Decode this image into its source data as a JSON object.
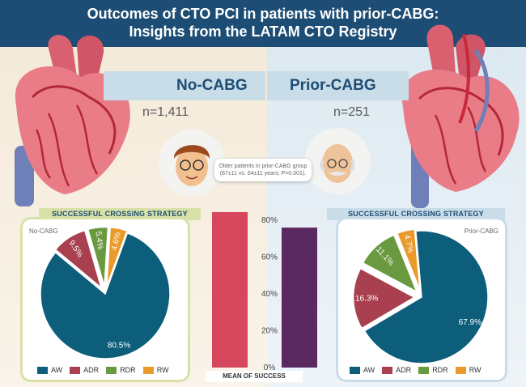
{
  "header": {
    "title_line1": "Outcomes of CTO PCI in patients with prior-CABG:",
    "title_line2": "Insights from the LATAM CTO Registry"
  },
  "groups": {
    "no_cabg": {
      "label": "No-CABG",
      "n": "n=1,411",
      "panel_label": "No-CABG"
    },
    "prior_cabg": {
      "label": "Prior-CABG",
      "n": "n=251",
      "panel_label": "Prior-CABG"
    }
  },
  "annotation": "Older patients in prior-CABG group (67±11 vs. 64±11 years; P=0.001).",
  "strip_title": "SUCCESSFUL CROSSING STRATEGY",
  "colors": {
    "AW": "#0c5e7b",
    "ADR": "#a8404f",
    "RDR": "#6a9a3f",
    "RW": "#e99a2b",
    "bar_no_cabg": "#d6475d",
    "bar_prior_cabg": "#5a2960"
  },
  "chart_data": [
    {
      "type": "pie",
      "title": "No-CABG",
      "categories": [
        "AW",
        "ADR",
        "RDR",
        "RW"
      ],
      "values": [
        80.5,
        9.5,
        5.4,
        4.6
      ],
      "labels": [
        "80.5%",
        "9.5%",
        "5.4%",
        "4.6%"
      ]
    },
    {
      "type": "pie",
      "title": "Prior-CABG",
      "categories": [
        "AW",
        "ADR",
        "RDR",
        "RW"
      ],
      "values": [
        67.9,
        16.3,
        11.1,
        4.7
      ],
      "labels": [
        "67.9%",
        "16.3%",
        "11.1%",
        "4.7%"
      ]
    },
    {
      "type": "bar",
      "title": "MEAN OF SUCCESS",
      "categories": [
        "No-CABG",
        "Prior-CABG"
      ],
      "values": [
        85,
        76
      ],
      "ylim": [
        0,
        80
      ],
      "yticks": [
        "0%",
        "20%",
        "40%",
        "60%",
        "80%"
      ]
    }
  ]
}
